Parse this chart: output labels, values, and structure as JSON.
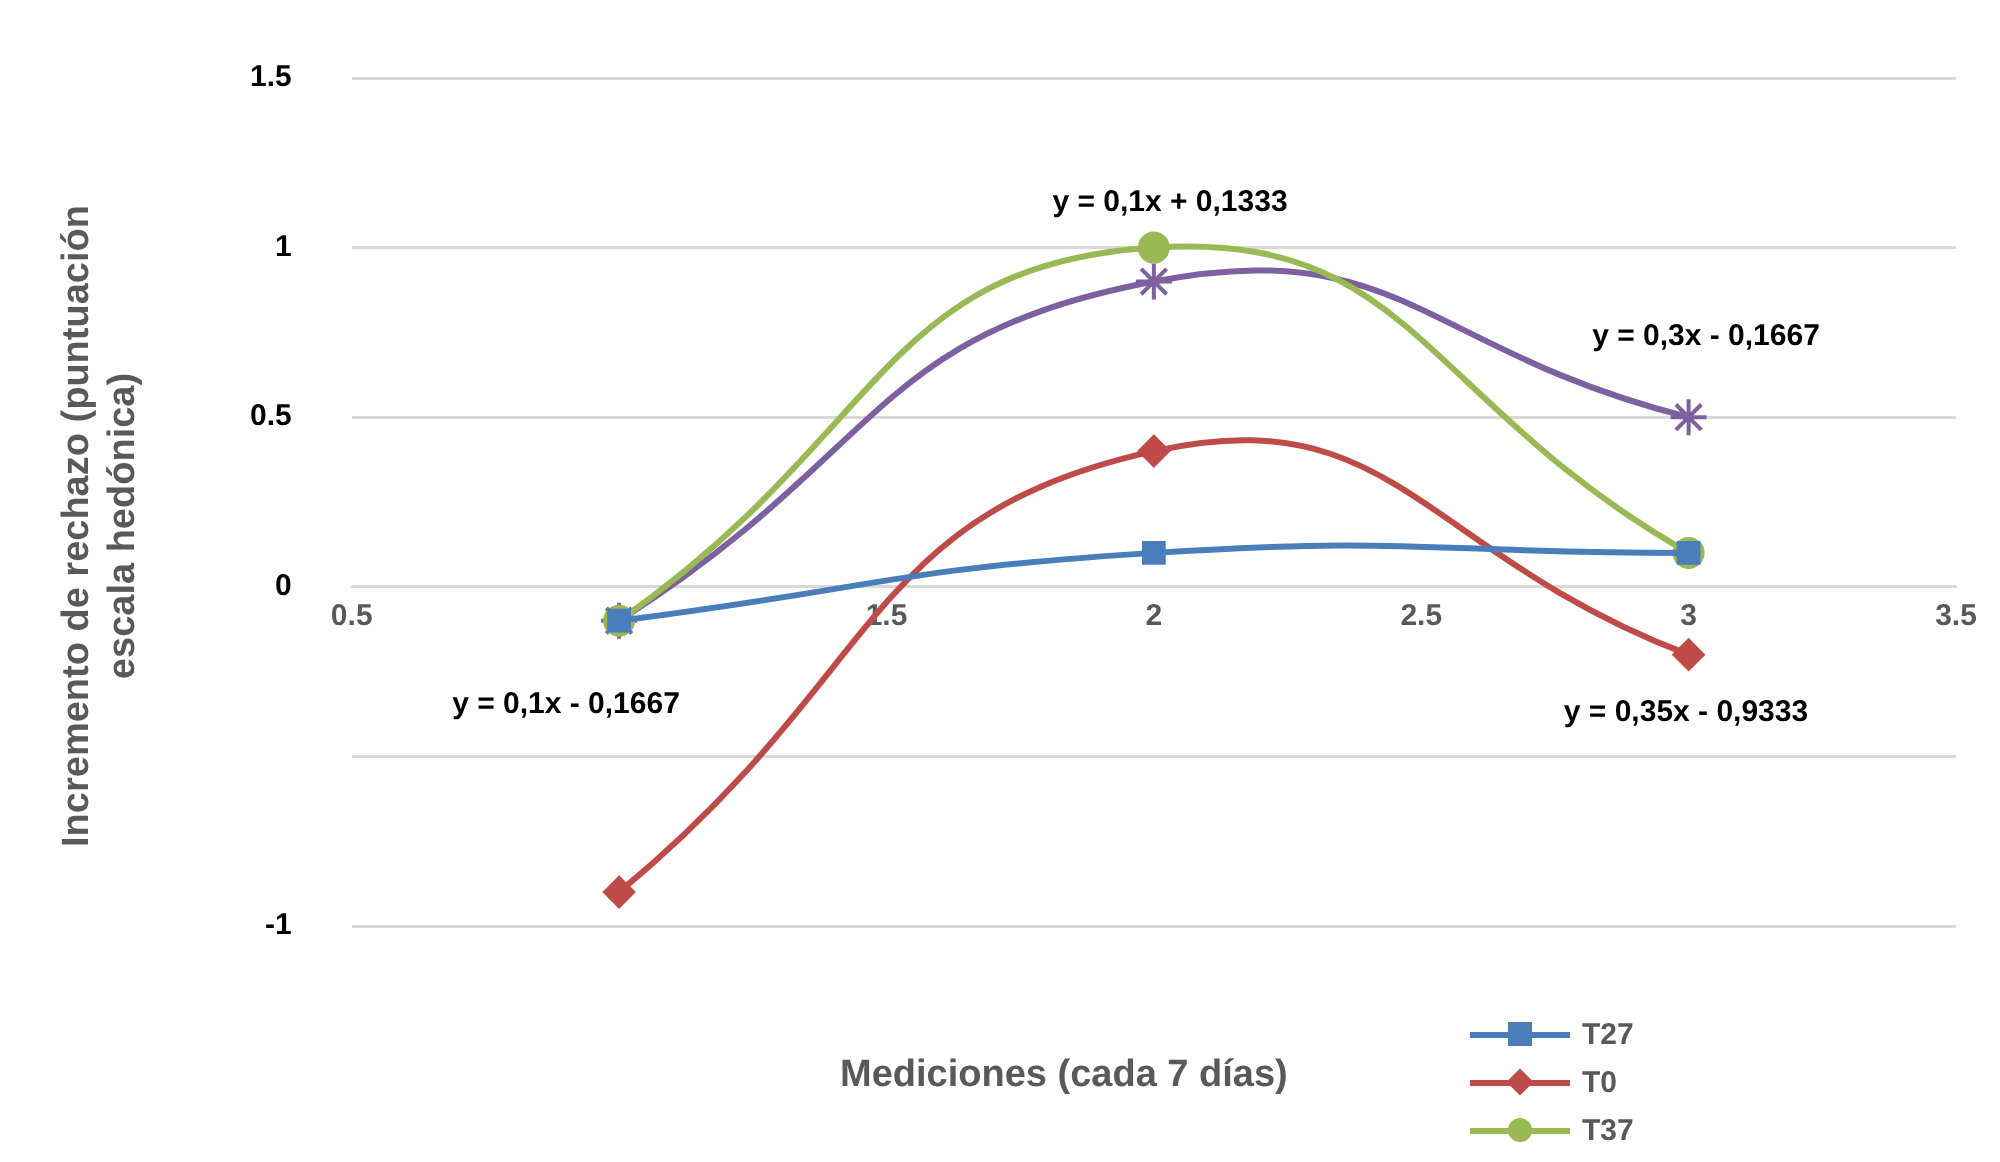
{
  "chart_data": {
    "type": "line",
    "xlabel": "Mediciones (cada 7 días)",
    "ylabel": "Incremento de rechazo (puntuación escala hedónica)",
    "x": [
      1,
      2,
      3
    ],
    "series": [
      {
        "name": "T27",
        "color": "#4a7ebb",
        "marker": "square",
        "values": [
          -0.1,
          0.1,
          0.1
        ]
      },
      {
        "name": "T0",
        "color": "#be4b48",
        "marker": "diamond",
        "values": [
          -0.9,
          0.4,
          -0.2
        ]
      },
      {
        "name": "T37",
        "color": "#98b954",
        "marker": "circle",
        "values": [
          -0.1,
          1.0,
          0.1
        ]
      },
      {
        "color": "#7d60a0",
        "marker": "cross",
        "values": [
          -0.1,
          0.9,
          0.5
        ]
      }
    ],
    "xlim": [
      0.5,
      3.5
    ],
    "xticks": [
      0.5,
      1.5,
      2,
      2.5,
      3,
      3.5
    ],
    "ylim": [
      -1,
      1.5
    ],
    "yticks": [
      -1,
      {
        "value": -0.5,
        "label": null
      },
      0,
      0.5,
      1,
      1.5
    ],
    "grid": "y",
    "legend": "bottom right",
    "annotations": [
      "y = 0,1x + 0,1333",
      "y = 0,3x - 0,1667",
      "y = 0,1x - 0,1667",
      "y = 0,35x - 0,9333"
    ]
  }
}
